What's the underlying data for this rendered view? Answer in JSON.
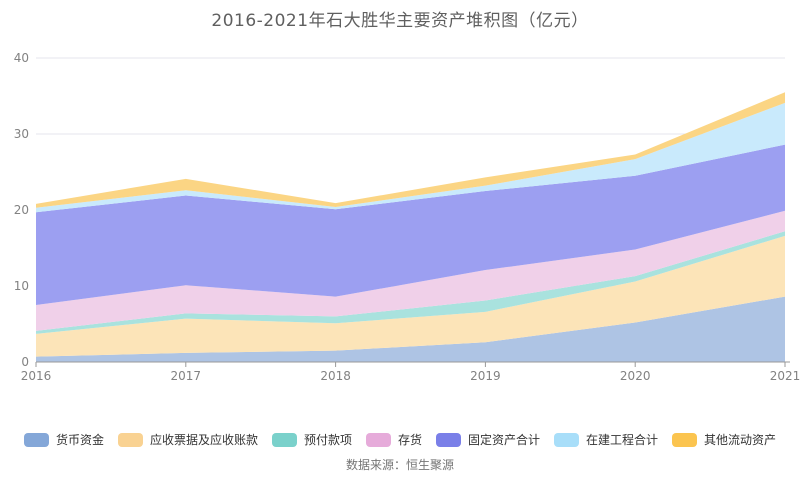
{
  "window": {
    "background": "#ffffff"
  },
  "chart_data": {
    "type": "area",
    "stacked": true,
    "title": "2016-2021年石大胜华主要资产堆积图（亿元）",
    "source": "数据来源：恒生聚源",
    "x": [
      "2016",
      "2017",
      "2018",
      "2019",
      "2020",
      "2021"
    ],
    "xlabel": "",
    "ylabel": "",
    "ylim": [
      0,
      40
    ],
    "yticks": [
      0,
      10,
      20,
      30,
      40
    ],
    "grid": true,
    "legend_position": "bottom",
    "grid_color": "#e4e4ec",
    "axis_color": "#999999",
    "tick_label_color": "#828282",
    "series": [
      {
        "key": "monetary-funds",
        "name": "货币资金",
        "color": "#84a7d8",
        "fill": "#aec4e4",
        "values": [
          0.7,
          1.2,
          1.5,
          2.6,
          5.2,
          8.6
        ]
      },
      {
        "key": "notes-and-accounts-receivable",
        "name": "应收票据及应收账款",
        "color": "#f9d292",
        "fill": "#fce4b8",
        "values": [
          3.0,
          4.5,
          3.6,
          4.0,
          5.4,
          8.0
        ]
      },
      {
        "key": "prepayments",
        "name": "预付款项",
        "color": "#7ad1cb",
        "fill": "#a9e2de",
        "values": [
          0.4,
          0.7,
          0.9,
          1.5,
          0.7,
          0.6
        ]
      },
      {
        "key": "inventory",
        "name": "存货",
        "color": "#e6abda",
        "fill": "#f0d0e9",
        "values": [
          3.4,
          3.7,
          2.6,
          4.0,
          3.5,
          2.7
        ]
      },
      {
        "key": "fixed-assets-total",
        "name": "固定资产合计",
        "color": "#7a7fe8",
        "fill": "#9c9ff1",
        "values": [
          12.2,
          11.8,
          11.5,
          10.4,
          9.7,
          8.7
        ]
      },
      {
        "key": "construction-in-progress-total",
        "name": "在建工程合计",
        "color": "#a8def9",
        "fill": "#c9eafc",
        "values": [
          0.6,
          0.7,
          0.3,
          0.7,
          2.2,
          5.5
        ]
      },
      {
        "key": "other-current-assets",
        "name": "其他流动资产",
        "color": "#fbc44f",
        "fill": "#fbd584",
        "values": [
          0.5,
          1.5,
          0.5,
          1.1,
          0.6,
          1.4
        ]
      }
    ]
  }
}
